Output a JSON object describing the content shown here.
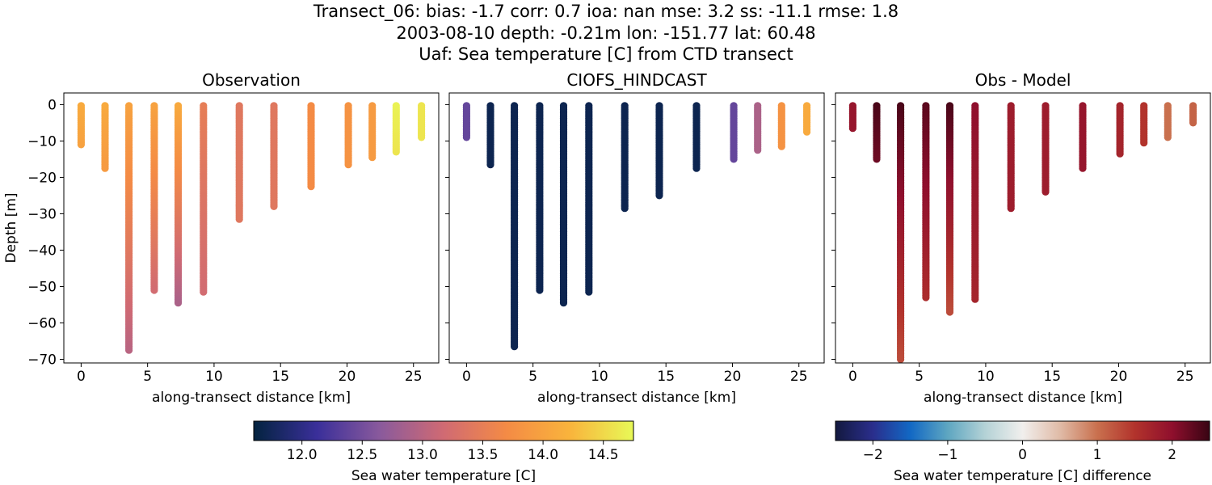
{
  "title_lines": [
    "Transect_06: bias: -1.7  corr: 0.7  ioa: nan  mse: 3.2  ss: -11.1  rmse: 1.8",
    "2003-08-10 depth: -0.21m lon: -151.77 lat: 60.48",
    "Uaf: Sea temperature [C] from CTD transect"
  ],
  "chart_data": [
    {
      "type": "scatter",
      "title": "Observation",
      "xlabel": "along-transect distance [km]",
      "ylabel": "Depth [m]",
      "xlim": [
        -1.3,
        26.9
      ],
      "ylim": [
        -71,
        3.2
      ],
      "xticks": [
        "0",
        "5",
        "10",
        "15",
        "20",
        "25"
      ],
      "yticks": [
        "0",
        "−10",
        "−20",
        "−30",
        "−40",
        "−50",
        "−60",
        "−70"
      ],
      "grid": false,
      "colorbar": "temperature",
      "casts": [
        {
          "x": 0.0,
          "bottom": -11,
          "c_top": 14.1,
          "c_bottom": 14.0
        },
        {
          "x": 1.8,
          "bottom": -17.5,
          "c_top": 14.1,
          "c_bottom": 13.9
        },
        {
          "x": 3.6,
          "bottom": -67.5,
          "c_top": 14.0,
          "c_bottom": 13.0
        },
        {
          "x": 5.5,
          "bottom": -51,
          "c_top": 14.0,
          "c_bottom": 13.2
        },
        {
          "x": 7.3,
          "bottom": -54.5,
          "c_top": 14.1,
          "c_bottom": 12.9
        },
        {
          "x": 9.2,
          "bottom": -51.5,
          "c_top": 13.5,
          "c_bottom": 13.2
        },
        {
          "x": 11.9,
          "bottom": -31.5,
          "c_top": 13.4,
          "c_bottom": 13.4
        },
        {
          "x": 14.5,
          "bottom": -28,
          "c_top": 13.4,
          "c_bottom": 13.4
        },
        {
          "x": 17.3,
          "bottom": -22.5,
          "c_top": 13.7,
          "c_bottom": 13.7
        },
        {
          "x": 20.1,
          "bottom": -16.5,
          "c_top": 13.8,
          "c_bottom": 13.8
        },
        {
          "x": 21.9,
          "bottom": -14.5,
          "c_top": 13.9,
          "c_bottom": 13.9
        },
        {
          "x": 23.7,
          "bottom": -13,
          "c_top": 14.7,
          "c_bottom": 14.6
        },
        {
          "x": 25.6,
          "bottom": -9,
          "c_top": 14.6,
          "c_bottom": 14.6
        }
      ]
    },
    {
      "type": "scatter",
      "title": "CIOFS_HINDCAST",
      "xlabel": "along-transect distance [km]",
      "ylabel": "",
      "xlim": [
        -1.3,
        26.9
      ],
      "ylim": [
        -71,
        3.2
      ],
      "xticks": [
        "0",
        "5",
        "10",
        "15",
        "20",
        "25"
      ],
      "yticks": [],
      "grid": false,
      "colorbar": "temperature",
      "casts": [
        {
          "x": 0.0,
          "bottom": -9,
          "c_top": 12.4,
          "c_bottom": 12.4
        },
        {
          "x": 1.8,
          "bottom": -16.5,
          "c_top": 11.7,
          "c_bottom": 11.7
        },
        {
          "x": 3.6,
          "bottom": -66.5,
          "c_top": 11.7,
          "c_bottom": 11.7
        },
        {
          "x": 5.5,
          "bottom": -51,
          "c_top": 11.7,
          "c_bottom": 11.7
        },
        {
          "x": 7.3,
          "bottom": -54.5,
          "c_top": 11.7,
          "c_bottom": 11.7
        },
        {
          "x": 9.2,
          "bottom": -51.5,
          "c_top": 11.7,
          "c_bottom": 11.7
        },
        {
          "x": 11.9,
          "bottom": -28.5,
          "c_top": 11.7,
          "c_bottom": 11.7
        },
        {
          "x": 14.5,
          "bottom": -25,
          "c_top": 11.7,
          "c_bottom": 11.7
        },
        {
          "x": 17.3,
          "bottom": -17.5,
          "c_top": 11.7,
          "c_bottom": 11.7
        },
        {
          "x": 20.1,
          "bottom": -15,
          "c_top": 12.4,
          "c_bottom": 12.4
        },
        {
          "x": 21.9,
          "bottom": -12.5,
          "c_top": 12.9,
          "c_bottom": 12.9
        },
        {
          "x": 23.7,
          "bottom": -11.5,
          "c_top": 13.8,
          "c_bottom": 13.8
        },
        {
          "x": 25.6,
          "bottom": -7.5,
          "c_top": 14.1,
          "c_bottom": 14.1
        }
      ]
    },
    {
      "type": "scatter",
      "title": "Obs - Model",
      "xlabel": "along-transect distance [km]",
      "ylabel": "",
      "xlim": [
        -1.3,
        26.9
      ],
      "ylim": [
        -71,
        3.2
      ],
      "xticks": [
        "0",
        "5",
        "10",
        "15",
        "20",
        "25"
      ],
      "yticks": [],
      "grid": false,
      "colorbar": "difference",
      "casts": [
        {
          "x": 0.0,
          "bottom": -6.5,
          "c_top": 1.9,
          "c_bottom": 1.9
        },
        {
          "x": 1.8,
          "bottom": -15,
          "c_top": 2.4,
          "c_bottom": 2.2
        },
        {
          "x": 3.6,
          "bottom": -70,
          "c_top": 2.4,
          "c_bottom": 1.3
        },
        {
          "x": 5.5,
          "bottom": -53,
          "c_top": 2.3,
          "c_bottom": 1.6
        },
        {
          "x": 7.3,
          "bottom": -57,
          "c_top": 2.4,
          "c_bottom": 1.3
        },
        {
          "x": 9.2,
          "bottom": -53.5,
          "c_top": 2.0,
          "c_bottom": 1.7
        },
        {
          "x": 11.9,
          "bottom": -28.5,
          "c_top": 1.8,
          "c_bottom": 1.8
        },
        {
          "x": 14.5,
          "bottom": -24,
          "c_top": 1.8,
          "c_bottom": 1.8
        },
        {
          "x": 17.3,
          "bottom": -17.5,
          "c_top": 1.9,
          "c_bottom": 1.9
        },
        {
          "x": 20.1,
          "bottom": -13.5,
          "c_top": 1.7,
          "c_bottom": 1.7
        },
        {
          "x": 21.9,
          "bottom": -10.5,
          "c_top": 1.5,
          "c_bottom": 1.5
        },
        {
          "x": 23.7,
          "bottom": -9,
          "c_top": 1.0,
          "c_bottom": 1.0
        },
        {
          "x": 25.6,
          "bottom": -5,
          "c_top": 1.1,
          "c_bottom": 1.1
        }
      ]
    }
  ],
  "colorbars": {
    "temperature": {
      "label": "Sea water temperature [C]",
      "range": [
        11.6,
        14.75
      ],
      "ticks": [
        "12.0",
        "12.5",
        "13.0",
        "13.5",
        "14.0",
        "14.5"
      ],
      "tick_values": [
        12.0,
        12.5,
        13.0,
        13.5,
        14.0,
        14.5
      ],
      "colors": [
        "#03233f",
        "#3a2f9a",
        "#8a5a9c",
        "#d06a73",
        "#f48b45",
        "#f9b43c",
        "#e8f957"
      ]
    },
    "difference": {
      "label": "Sea water temperature [C] difference",
      "range": [
        -2.5,
        2.5
      ],
      "ticks": [
        "−2",
        "−1",
        "0",
        "1",
        "2"
      ],
      "tick_values": [
        -2,
        -1,
        0,
        1,
        2
      ],
      "colors": [
        "#13193f",
        "#2a2e8c",
        "#1268c4",
        "#5ea6c1",
        "#b4d2d6",
        "#f1efed",
        "#e0bba7",
        "#c9704e",
        "#b2332c",
        "#8f0f2d",
        "#380413"
      ]
    }
  }
}
